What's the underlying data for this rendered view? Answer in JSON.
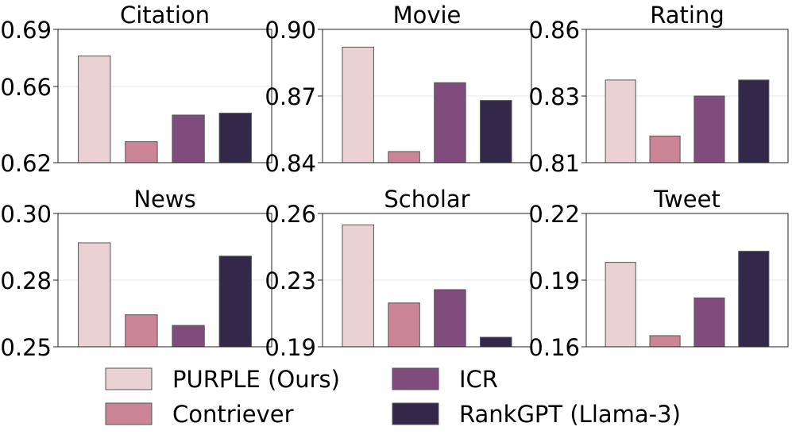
{
  "chart_data": [
    {
      "type": "bar",
      "title": "Citation",
      "series_values": [
        0.676,
        0.631,
        0.645,
        0.646
      ],
      "ylim": [
        0.62,
        0.69
      ],
      "ticks": [
        "0.62",
        "0.66",
        "0.69"
      ],
      "tick_values": [
        0.62,
        0.66,
        0.69
      ]
    },
    {
      "type": "bar",
      "title": "Movie",
      "series_values": [
        0.892,
        0.845,
        0.876,
        0.868
      ],
      "ylim": [
        0.84,
        0.9
      ],
      "ticks": [
        "0.84",
        "0.87",
        "0.90"
      ],
      "tick_values": [
        0.84,
        0.87,
        0.9
      ]
    },
    {
      "type": "bar",
      "title": "Rating",
      "series_values": [
        0.841,
        0.82,
        0.835,
        0.841
      ],
      "ylim": [
        0.81,
        0.86
      ],
      "ticks": [
        "0.81",
        "0.83",
        "0.86"
      ],
      "tick_values": [
        0.81,
        0.835,
        0.86
      ]
    },
    {
      "type": "bar",
      "title": "News",
      "series_values": [
        0.289,
        0.262,
        0.258,
        0.284
      ],
      "ylim": [
        0.25,
        0.3
      ],
      "ticks": [
        "0.25",
        "0.28",
        "0.30"
      ],
      "tick_values": [
        0.25,
        0.275,
        0.3
      ]
    },
    {
      "type": "bar",
      "title": "Scholar",
      "series_values": [
        0.254,
        0.213,
        0.22,
        0.195
      ],
      "ylim": [
        0.19,
        0.26
      ],
      "ticks": [
        "0.19",
        "0.23",
        "0.26"
      ],
      "tick_values": [
        0.19,
        0.225,
        0.26
      ]
    },
    {
      "type": "bar",
      "title": "Tweet",
      "series_values": [
        0.198,
        0.165,
        0.182,
        0.203
      ],
      "ylim": [
        0.16,
        0.22
      ],
      "ticks": [
        "0.16",
        "0.19",
        "0.22"
      ],
      "tick_values": [
        0.16,
        0.19,
        0.22
      ]
    }
  ],
  "legend": [
    {
      "name": "PURPLE (Ours)",
      "color": "#ead1d4"
    },
    {
      "name": "Contriever",
      "color": "#cc8596"
    },
    {
      "name": "ICR",
      "color": "#7f4c7d"
    },
    {
      "name": "RankGPT (Llama-3)",
      "color": "#34284a"
    }
  ],
  "grid": "horizontal-midline",
  "legend_placement": "bottom-center"
}
